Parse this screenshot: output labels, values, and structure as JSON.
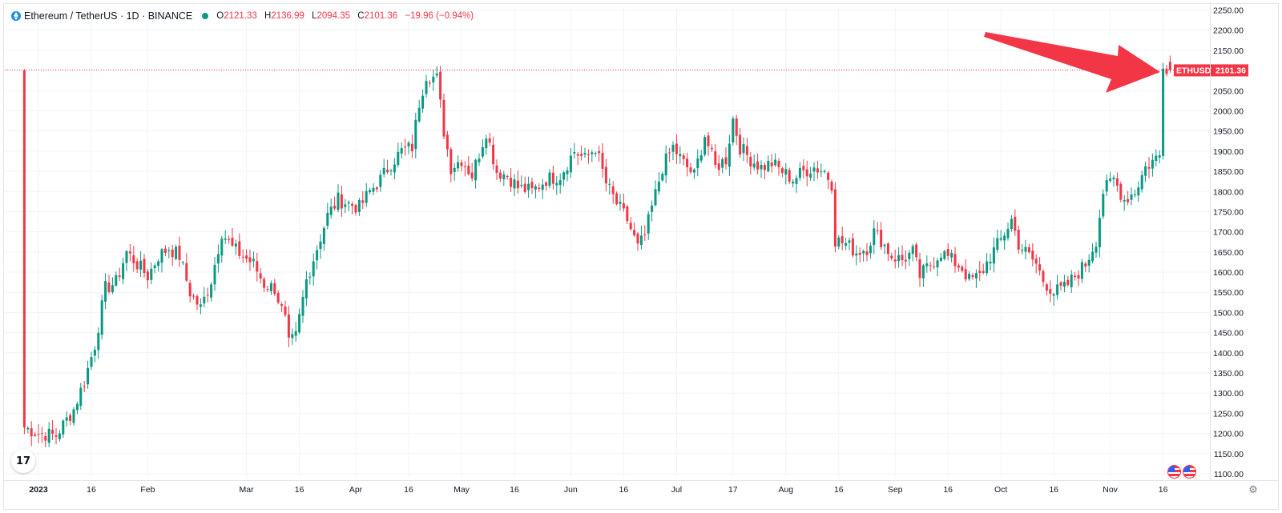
{
  "header": {
    "symbol_title": "Ethereum / TetherUS · 1D · BINANCE",
    "ohlc": {
      "o_label": "O",
      "o_value": "2121.33",
      "h_label": "H",
      "h_value": "2136.99",
      "l_label": "L",
      "l_value": "2094.35",
      "c_label": "C",
      "c_value": "2101.36",
      "change": "−19.96 (−0.94%)"
    }
  },
  "price_label": {
    "ticker": "ETHUSDT",
    "value": "2101.36"
  },
  "colors": {
    "up": "#089981",
    "down": "#f23645",
    "arrow": "#f23645",
    "grid": "#f0f3fa",
    "axis_text": "#131722"
  },
  "logo_text": "17",
  "icons": {
    "logo": "tradingview-logo-icon",
    "settings": "gear-icon",
    "flags": "us-flag-icon"
  },
  "chart_data": {
    "type": "candlestick",
    "title": "Ethereum / TetherUS · 1D · BINANCE",
    "last_price": 2101.36,
    "ylim": [
      1090,
      2255
    ],
    "y_ticks": [
      "2250.00",
      "2200.00",
      "2150.00",
      "2100.00",
      "2050.00",
      "2000.00",
      "1950.00",
      "1900.00",
      "1850.00",
      "1800.00",
      "1750.00",
      "1700.00",
      "1650.00",
      "1600.00",
      "1550.00",
      "1500.00",
      "1450.00",
      "1400.00",
      "1350.00",
      "1300.00",
      "1250.00",
      "1200.00",
      "1150.00",
      "1100.00"
    ],
    "x_ticks": [
      {
        "label": "2023",
        "day": 0
      },
      {
        "label": "16",
        "day": 15
      },
      {
        "label": "Feb",
        "day": 31
      },
      {
        "label": "Mar",
        "day": 59
      },
      {
        "label": "16",
        "day": 74
      },
      {
        "label": "Apr",
        "day": 90
      },
      {
        "label": "16",
        "day": 105
      },
      {
        "label": "May",
        "day": 120
      },
      {
        "label": "16",
        "day": 135
      },
      {
        "label": "Jun",
        "day": 151
      },
      {
        "label": "16",
        "day": 166
      },
      {
        "label": "Jul",
        "day": 181
      },
      {
        "label": "17",
        "day": 197
      },
      {
        "label": "Aug",
        "day": 212
      },
      {
        "label": "16",
        "day": 227
      },
      {
        "label": "Sep",
        "day": 243
      },
      {
        "label": "16",
        "day": 258
      },
      {
        "label": "Oct",
        "day": 273
      },
      {
        "label": "16",
        "day": 288
      },
      {
        "label": "Nov",
        "day": 304
      },
      {
        "label": "16",
        "day": 319
      }
    ],
    "close_path": [
      [
        -4,
        1215
      ],
      [
        0,
        1200
      ],
      [
        5,
        1195
      ],
      [
        10,
        1260
      ],
      [
        13,
        1330
      ],
      [
        16,
        1420
      ],
      [
        19,
        1560
      ],
      [
        22,
        1575
      ],
      [
        25,
        1650
      ],
      [
        28,
        1620
      ],
      [
        31,
        1590
      ],
      [
        34,
        1640
      ],
      [
        37,
        1660
      ],
      [
        40,
        1640
      ],
      [
        43,
        1550
      ],
      [
        46,
        1510
      ],
      [
        49,
        1580
      ],
      [
        52,
        1700
      ],
      [
        55,
        1660
      ],
      [
        58,
        1640
      ],
      [
        61,
        1620
      ],
      [
        64,
        1570
      ],
      [
        67,
        1560
      ],
      [
        70,
        1480
      ],
      [
        71,
        1420
      ],
      [
        73,
        1440
      ],
      [
        76,
        1580
      ],
      [
        79,
        1660
      ],
      [
        82,
        1740
      ],
      [
        85,
        1780
      ],
      [
        88,
        1770
      ],
      [
        91,
        1760
      ],
      [
        94,
        1800
      ],
      [
        97,
        1830
      ],
      [
        100,
        1870
      ],
      [
        103,
        1900
      ],
      [
        106,
        1910
      ],
      [
        108,
        2020
      ],
      [
        110,
        2090
      ],
      [
        113,
        2080
      ],
      [
        115,
        1950
      ],
      [
        117,
        1860
      ],
      [
        120,
        1880
      ],
      [
        123,
        1840
      ],
      [
        127,
        1950
      ],
      [
        130,
        1850
      ],
      [
        133,
        1840
      ],
      [
        136,
        1810
      ],
      [
        140,
        1800
      ],
      [
        144,
        1830
      ],
      [
        148,
        1840
      ],
      [
        152,
        1900
      ],
      [
        155,
        1880
      ],
      [
        158,
        1910
      ],
      [
        161,
        1820
      ],
      [
        164,
        1770
      ],
      [
        167,
        1730
      ],
      [
        170,
        1660
      ],
      [
        172,
        1690
      ],
      [
        174,
        1760
      ],
      [
        177,
        1860
      ],
      [
        180,
        1910
      ],
      [
        183,
        1870
      ],
      [
        186,
        1840
      ],
      [
        189,
        1940
      ],
      [
        192,
        1860
      ],
      [
        195,
        1880
      ],
      [
        197,
        1980
      ],
      [
        199,
        1910
      ],
      [
        202,
        1880
      ],
      [
        205,
        1860
      ],
      [
        208,
        1870
      ],
      [
        211,
        1850
      ],
      [
        214,
        1830
      ],
      [
        217,
        1850
      ],
      [
        220,
        1860
      ],
      [
        223,
        1850
      ],
      [
        225,
        1820
      ],
      [
        226,
        1680
      ],
      [
        229,
        1670
      ],
      [
        232,
        1650
      ],
      [
        235,
        1660
      ],
      [
        237,
        1700
      ],
      [
        239,
        1680
      ],
      [
        242,
        1640
      ],
      [
        245,
        1630
      ],
      [
        248,
        1650
      ],
      [
        250,
        1590
      ],
      [
        253,
        1620
      ],
      [
        256,
        1650
      ],
      [
        259,
        1630
      ],
      [
        262,
        1610
      ],
      [
        264,
        1580
      ],
      [
        267,
        1590
      ],
      [
        270,
        1640
      ],
      [
        273,
        1680
      ],
      [
        276,
        1730
      ],
      [
        278,
        1670
      ],
      [
        281,
        1640
      ],
      [
        283,
        1620
      ],
      [
        285,
        1580
      ],
      [
        288,
        1550
      ],
      [
        291,
        1560
      ],
      [
        294,
        1590
      ],
      [
        297,
        1620
      ],
      [
        300,
        1680
      ],
      [
        302,
        1800
      ],
      [
        305,
        1830
      ],
      [
        308,
        1780
      ],
      [
        311,
        1800
      ],
      [
        314,
        1860
      ],
      [
        318,
        1890
      ],
      [
        319,
        2120
      ],
      [
        321,
        2101
      ]
    ],
    "candle_count": 318
  }
}
